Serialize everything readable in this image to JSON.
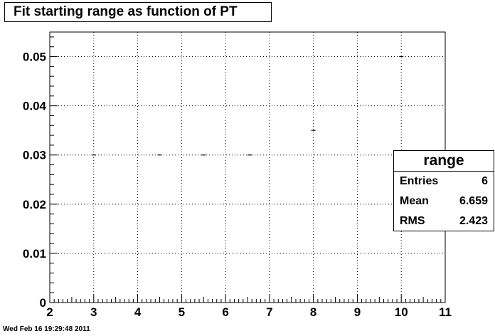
{
  "title": "Fit starting range as function of PT",
  "datestamp": "Wed Feb 16 19:29:48 2011",
  "stats": {
    "name": "range",
    "rows": [
      {
        "label": "Entries",
        "value": "6"
      },
      {
        "label": "Mean",
        "value": "6.659"
      },
      {
        "label": "RMS",
        "value": "2.423"
      }
    ]
  },
  "chart_data": {
    "type": "scatter",
    "title": "Fit starting range as function of PT",
    "xlabel": "",
    "ylabel": "",
    "xlim": [
      2,
      11
    ],
    "ylim": [
      0,
      0.055
    ],
    "grid": true,
    "x_ticks": [
      "2",
      "3",
      "4",
      "5",
      "6",
      "7",
      "8",
      "9",
      "10",
      "11"
    ],
    "y_ticks": [
      "0",
      "0.01",
      "0.02",
      "0.03",
      "0.04",
      "0.05"
    ],
    "points": [
      {
        "x": 3.0,
        "y": 0.03
      },
      {
        "x": 4.5,
        "y": 0.03
      },
      {
        "x": 5.5,
        "y": 0.03
      },
      {
        "x": 6.55,
        "y": 0.03
      },
      {
        "x": 8.0,
        "y": 0.035
      },
      {
        "x": 10.0,
        "y": 0.05
      }
    ],
    "marker_color": "#000000"
  }
}
